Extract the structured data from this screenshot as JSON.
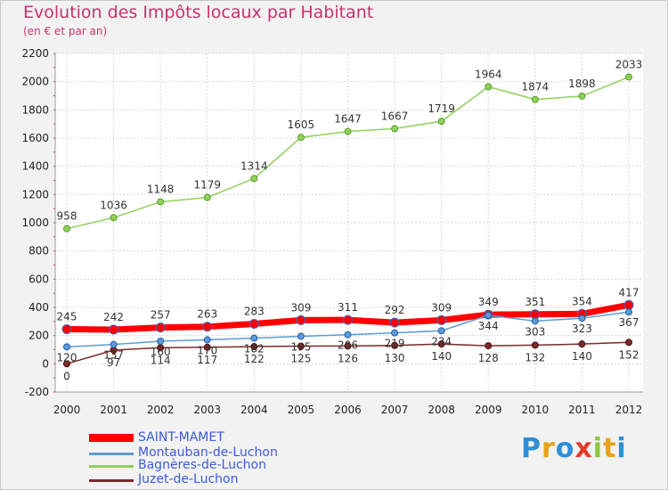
{
  "title": "Evolution des Impôts locaux par Habitant",
  "subtitle": "(en € et par an)",
  "logo": "Proxiti",
  "chart_data": {
    "type": "line",
    "title": "Evolution des Impôts locaux par Habitant",
    "subtitle": "(en € et par an)",
    "categories": [
      "2000",
      "2001",
      "2002",
      "2003",
      "2004",
      "2005",
      "2006",
      "2007",
      "2008",
      "2009",
      "2010",
      "2011",
      "2012"
    ],
    "ylim": [
      -200,
      2200
    ],
    "yticks": [
      -200,
      0,
      200,
      400,
      600,
      800,
      1000,
      1200,
      1400,
      1600,
      1800,
      2000,
      2200
    ],
    "grid": true,
    "legend_placement": "bottom-left",
    "series": [
      {
        "name": "SAINT-MAMET",
        "color": "#ff0000",
        "values": [
          245,
          242,
          257,
          263,
          283,
          309,
          311,
          292,
          309,
          349,
          351,
          354,
          417
        ],
        "labels": [
          "245",
          "242",
          "257",
          "263",
          "283",
          "309",
          "311",
          "292",
          "309",
          "349",
          "351",
          "354",
          "417"
        ]
      },
      {
        "name": "Montauban-de-Luchon",
        "color": "#5b9bd5",
        "values": [
          120,
          137,
          160,
          170,
          182,
          195,
          206,
          219,
          234,
          344,
          303,
          323,
          367
        ],
        "labels": [
          "120",
          "137",
          "160",
          "170",
          "182",
          "195",
          "206",
          "219",
          "234",
          "344",
          "303",
          "323",
          "367"
        ]
      },
      {
        "name": "Bagnères-de-Luchon",
        "color": "#8fd15a",
        "values": [
          958,
          1036,
          1148,
          1179,
          1314,
          1605,
          1647,
          1667,
          1719,
          1964,
          1874,
          1898,
          2033
        ],
        "labels": [
          "958",
          "1036",
          "1148",
          "1179",
          "1314",
          "1605",
          "1647",
          "1667",
          "1719",
          "1964",
          "1874",
          "1898",
          "2033"
        ]
      },
      {
        "name": "Juzet-de-Luchon",
        "color": "#7a2a2a",
        "values": [
          0,
          97,
          114,
          117,
          122,
          125,
          126,
          130,
          140,
          128,
          132,
          140,
          152
        ],
        "labels": [
          "0",
          "97",
          "114",
          "117",
          "122",
          "125",
          "126",
          "130",
          "140",
          "128",
          "132",
          "140",
          "152"
        ]
      }
    ]
  },
  "legend": [
    {
      "label": "SAINT-MAMET",
      "color": "#ff0000"
    },
    {
      "label": "Montauban-de-Luchon",
      "color": "#5b9bd5"
    },
    {
      "label": "Bagnères-de-Luchon",
      "color": "#8fd15a"
    },
    {
      "label": "Juzet-de-Luchon",
      "color": "#7a2a2a"
    }
  ]
}
